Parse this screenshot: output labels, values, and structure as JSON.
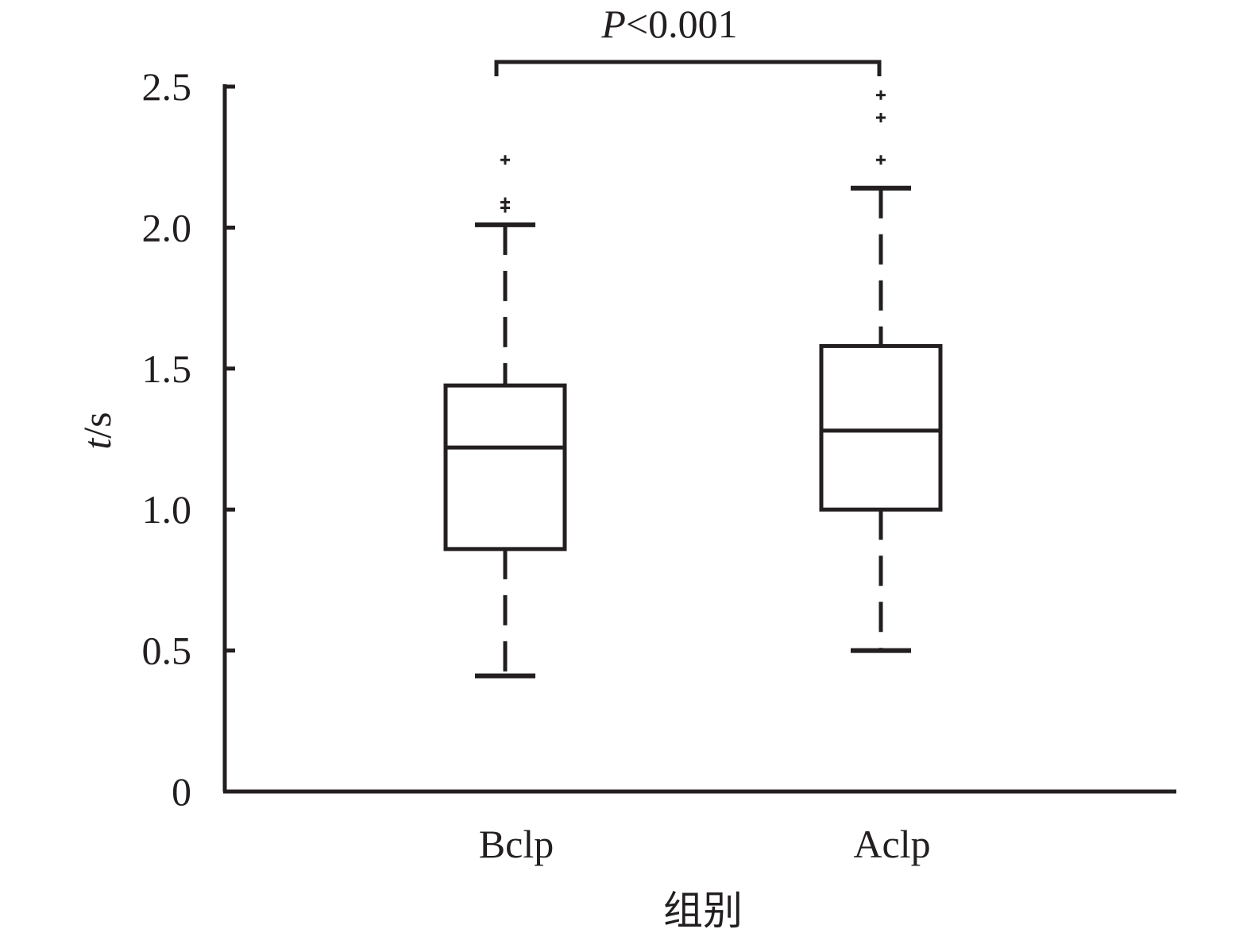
{
  "chart_data": {
    "type": "box",
    "title": "",
    "xlabel": "组别",
    "ylabel_italic": "t",
    "ylabel_unit": "/s",
    "ylim": [
      0,
      2.5
    ],
    "yticks": [
      0,
      0.5,
      1.0,
      1.5,
      2.0,
      2.5
    ],
    "ytick_labels": [
      "0",
      "0.5",
      "1.0",
      "1.5",
      "2.0",
      "2.5"
    ],
    "categories": [
      "Bclp",
      "Aclp"
    ],
    "boxes": [
      {
        "name": "Bclp",
        "whisker_low": 0.41,
        "q1": 0.86,
        "median": 1.22,
        "q3": 1.44,
        "whisker_high": 2.01,
        "outliers": [
          2.07,
          2.09,
          2.24
        ]
      },
      {
        "name": "Aclp",
        "whisker_low": 0.5,
        "q1": 1.0,
        "median": 1.28,
        "q3": 1.58,
        "whisker_high": 2.14,
        "outliers": [
          2.24,
          2.39,
          2.47
        ]
      }
    ],
    "significance": {
      "italic": "P",
      "text": "<0.001"
    },
    "grid": false,
    "legend": "none",
    "colors": {
      "ink": "#231f20",
      "background": "#ffffff"
    }
  }
}
